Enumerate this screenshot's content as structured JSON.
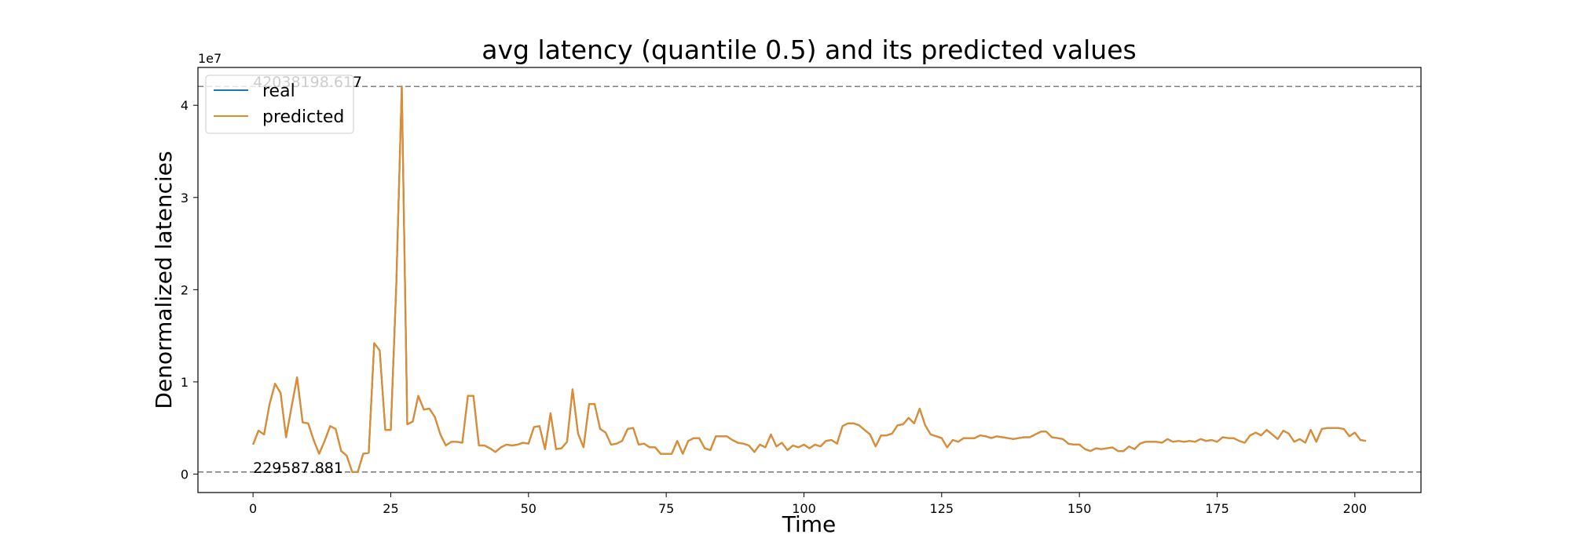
{
  "chart_data": {
    "type": "line",
    "title": "avg latency (quantile 0.5) and its predicted values",
    "xlabel": "Time",
    "ylabel": "Denormalized latencies",
    "y_offset_text": "1e7",
    "xlim": [
      -10,
      212
    ],
    "ylim": [
      -2000000,
      44100000
    ],
    "x_ticks": [
      0,
      25,
      50,
      75,
      100,
      125,
      150,
      175,
      200
    ],
    "x_tick_labels": [
      "0",
      "25",
      "50",
      "75",
      "100",
      "125",
      "150",
      "175",
      "200"
    ],
    "y_ticks": [
      0,
      10000000,
      20000000,
      30000000,
      40000000
    ],
    "y_tick_labels": [
      "0",
      "1",
      "2",
      "3",
      "4"
    ],
    "grid": false,
    "legend_position": "upper-left",
    "colors": {
      "real": "#1f77b4",
      "predicted": "#e08b2c",
      "reference_line": "#808080"
    },
    "reference_lines": [
      {
        "value": 42038198.617,
        "label": "42038198.617",
        "style": "dashed"
      },
      {
        "value": 229587.881,
        "label": "229587.881",
        "style": "dashed"
      }
    ],
    "series": [
      {
        "name": "real",
        "x": [
          0,
          1,
          2,
          3,
          4,
          5,
          6,
          7,
          8,
          9,
          10,
          11,
          12,
          13,
          14,
          15,
          16,
          17,
          18,
          19,
          20,
          21,
          22,
          23,
          24,
          25,
          26,
          27,
          28,
          29,
          30,
          31,
          32,
          33,
          34,
          35,
          36,
          37,
          38,
          39,
          40,
          41,
          42,
          43,
          44,
          45,
          46,
          47,
          48,
          49,
          50,
          51,
          52,
          53,
          54,
          55,
          56,
          57,
          58,
          59,
          60,
          61,
          62,
          63,
          64,
          65,
          66,
          67,
          68,
          69,
          70,
          71,
          72,
          73,
          74,
          75,
          76,
          77,
          78,
          79,
          80,
          81,
          82,
          83,
          84,
          85,
          86,
          87,
          88,
          89,
          90,
          91,
          92,
          93,
          94,
          95,
          96,
          97,
          98,
          99,
          100,
          101,
          102,
          103,
          104,
          105,
          106,
          107,
          108,
          109,
          110,
          111,
          112,
          113,
          114,
          115,
          116,
          117,
          118,
          119,
          120,
          121,
          122,
          123,
          124,
          125,
          126,
          127,
          128,
          129,
          130,
          131,
          132,
          133,
          134,
          135,
          136,
          137,
          138,
          139,
          140,
          141,
          142,
          143,
          144,
          145,
          146,
          147,
          148,
          149,
          150,
          151,
          152,
          153,
          154,
          155,
          156,
          157,
          158,
          159,
          160,
          161,
          162,
          163,
          164,
          165,
          166,
          167,
          168,
          169,
          170,
          171,
          172,
          173,
          174,
          175,
          176,
          177,
          178,
          179,
          180,
          181,
          182,
          183,
          184,
          185,
          186,
          187,
          188,
          189,
          190,
          191,
          192,
          193,
          194,
          195,
          196,
          197,
          198,
          199,
          200,
          201,
          202
        ],
        "y": [
          3200000,
          4700000,
          4300000,
          7600000,
          9800000,
          8800000,
          4000000,
          7300000,
          10500000,
          5600000,
          5500000,
          3700000,
          2200000,
          3600000,
          5200000,
          4900000,
          2500000,
          2000000,
          229587.881,
          229587.881,
          2200000,
          2300000,
          14200000,
          13400000,
          4800000,
          4800000,
          20500000,
          42038198.617,
          5400000,
          5700000,
          8500000,
          7000000,
          7100000,
          6200000,
          4300000,
          3100000,
          3500000,
          3500000,
          3400000,
          8500000,
          8500000,
          3100000,
          3100000,
          2800000,
          2400000,
          2900000,
          3200000,
          3100000,
          3200000,
          3400000,
          3300000,
          5100000,
          5200000,
          2700000,
          6600000,
          2700000,
          2800000,
          3500000,
          9200000,
          4400000,
          2900000,
          7600000,
          7600000,
          4900000,
          4500000,
          3200000,
          3300000,
          3600000,
          4900000,
          5000000,
          3200000,
          3300000,
          2900000,
          2900000,
          2200000,
          2200000,
          2200000,
          3600000,
          2200000,
          3600000,
          3900000,
          3900000,
          2800000,
          2600000,
          4100000,
          4100000,
          4100000,
          3700000,
          3400000,
          3300000,
          3100000,
          2400000,
          3200000,
          2900000,
          4300000,
          3000000,
          3400000,
          2600000,
          3100000,
          2900000,
          3200000,
          2800000,
          3200000,
          3000000,
          3600000,
          3700000,
          3300000,
          5200000,
          5500000,
          5500000,
          5300000,
          4800000,
          4300000,
          3000000,
          4200000,
          4200000,
          4400000,
          5300000,
          5400000,
          6100000,
          5500000,
          7100000,
          5300000,
          4300000,
          4100000,
          3900000,
          2900000,
          3700000,
          3500000,
          3900000,
          3900000,
          3900000,
          4200000,
          4100000,
          3900000,
          4100000,
          4000000,
          3900000,
          3800000,
          3900000,
          4000000,
          4000000,
          4300000,
          4600000,
          4600000,
          4000000,
          3900000,
          3800000,
          3300000,
          3200000,
          3200000,
          2700000,
          2500000,
          2800000,
          2700000,
          2800000,
          2900000,
          2500000,
          2500000,
          3000000,
          2700000,
          3300000,
          3500000,
          3500000,
          3500000,
          3400000,
          3800000,
          3500000,
          3600000,
          3500000,
          3600000,
          3500000,
          3800000,
          3600000,
          3700000,
          3500000,
          4000000,
          3900000,
          3900000,
          3600000,
          3400000,
          4200000,
          4500000,
          4200000,
          4800000,
          4300000,
          3800000,
          4700000,
          4400000,
          3500000,
          3800000,
          3400000,
          4800000,
          3500000,
          4900000,
          5000000,
          5000000,
          5000000,
          4900000,
          4100000,
          4500000,
          3700000,
          3600000
        ]
      },
      {
        "name": "predicted",
        "x": [
          0,
          1,
          2,
          3,
          4,
          5,
          6,
          7,
          8,
          9,
          10,
          11,
          12,
          13,
          14,
          15,
          16,
          17,
          18,
          19,
          20,
          21,
          22,
          23,
          24,
          25,
          26,
          27,
          28,
          29,
          30,
          31,
          32,
          33,
          34,
          35,
          36,
          37,
          38,
          39,
          40,
          41,
          42,
          43,
          44,
          45,
          46,
          47,
          48,
          49,
          50,
          51,
          52,
          53,
          54,
          55,
          56,
          57,
          58,
          59,
          60,
          61,
          62,
          63,
          64,
          65,
          66,
          67,
          68,
          69,
          70,
          71,
          72,
          73,
          74,
          75,
          76,
          77,
          78,
          79,
          80,
          81,
          82,
          83,
          84,
          85,
          86,
          87,
          88,
          89,
          90,
          91,
          92,
          93,
          94,
          95,
          96,
          97,
          98,
          99,
          100,
          101,
          102,
          103,
          104,
          105,
          106,
          107,
          108,
          109,
          110,
          111,
          112,
          113,
          114,
          115,
          116,
          117,
          118,
          119,
          120,
          121,
          122,
          123,
          124,
          125,
          126,
          127,
          128,
          129,
          130,
          131,
          132,
          133,
          134,
          135,
          136,
          137,
          138,
          139,
          140,
          141,
          142,
          143,
          144,
          145,
          146,
          147,
          148,
          149,
          150,
          151,
          152,
          153,
          154,
          155,
          156,
          157,
          158,
          159,
          160,
          161,
          162,
          163,
          164,
          165,
          166,
          167,
          168,
          169,
          170,
          171,
          172,
          173,
          174,
          175,
          176,
          177,
          178,
          179,
          180,
          181,
          182,
          183,
          184,
          185,
          186,
          187,
          188,
          189,
          190,
          191,
          192,
          193,
          194,
          195,
          196,
          197,
          198,
          199,
          200,
          201,
          202
        ],
        "y": [
          3200000,
          4700000,
          4300000,
          7600000,
          9800000,
          8800000,
          4000000,
          7300000,
          10500000,
          5600000,
          5500000,
          3700000,
          2200000,
          3600000,
          5200000,
          4900000,
          2500000,
          2000000,
          229587.881,
          229587.881,
          2200000,
          2300000,
          14200000,
          13400000,
          4800000,
          4800000,
          20500000,
          42038198.617,
          5400000,
          5700000,
          8500000,
          7000000,
          7100000,
          6200000,
          4300000,
          3100000,
          3500000,
          3500000,
          3400000,
          8500000,
          8500000,
          3100000,
          3100000,
          2800000,
          2400000,
          2900000,
          3200000,
          3100000,
          3200000,
          3400000,
          3300000,
          5100000,
          5200000,
          2700000,
          6600000,
          2700000,
          2800000,
          3500000,
          9200000,
          4400000,
          2900000,
          7600000,
          7600000,
          4900000,
          4500000,
          3200000,
          3300000,
          3600000,
          4900000,
          5000000,
          3200000,
          3300000,
          2900000,
          2900000,
          2200000,
          2200000,
          2200000,
          3600000,
          2200000,
          3600000,
          3900000,
          3900000,
          2800000,
          2600000,
          4100000,
          4100000,
          4100000,
          3700000,
          3400000,
          3300000,
          3100000,
          2400000,
          3200000,
          2900000,
          4300000,
          3000000,
          3400000,
          2600000,
          3100000,
          2900000,
          3200000,
          2800000,
          3200000,
          3000000,
          3600000,
          3700000,
          3300000,
          5200000,
          5500000,
          5500000,
          5300000,
          4800000,
          4300000,
          3000000,
          4200000,
          4200000,
          4400000,
          5300000,
          5400000,
          6100000,
          5500000,
          7100000,
          5300000,
          4300000,
          4100000,
          3900000,
          2900000,
          3700000,
          3500000,
          3900000,
          3900000,
          3900000,
          4200000,
          4100000,
          3900000,
          4100000,
          4000000,
          3900000,
          3800000,
          3900000,
          4000000,
          4000000,
          4300000,
          4600000,
          4600000,
          4000000,
          3900000,
          3800000,
          3300000,
          3200000,
          3200000,
          2700000,
          2500000,
          2800000,
          2700000,
          2800000,
          2900000,
          2500000,
          2500000,
          3000000,
          2700000,
          3300000,
          3500000,
          3500000,
          3500000,
          3400000,
          3800000,
          3500000,
          3600000,
          3500000,
          3600000,
          3500000,
          3800000,
          3600000,
          3700000,
          3500000,
          4000000,
          3900000,
          3900000,
          3600000,
          3400000,
          4200000,
          4500000,
          4200000,
          4800000,
          4300000,
          3800000,
          4700000,
          4400000,
          3500000,
          3800000,
          3400000,
          4800000,
          3500000,
          4900000,
          5000000,
          5000000,
          5000000,
          4900000,
          4100000,
          4500000,
          3700000,
          3600000
        ]
      }
    ]
  }
}
